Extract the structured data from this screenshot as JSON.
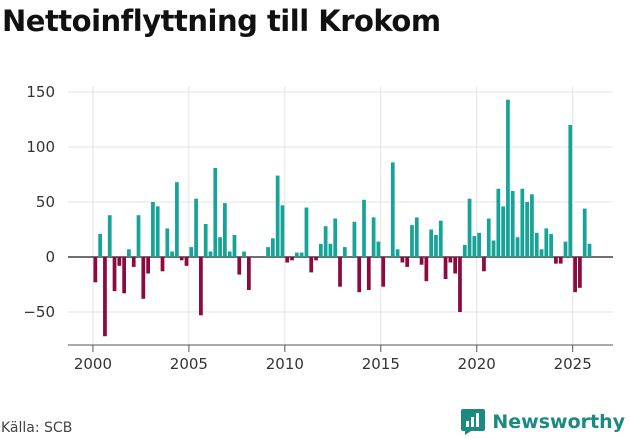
{
  "chart_data": {
    "type": "bar",
    "title": "Nettoinflyttning till Krokom",
    "xlabel": "",
    "ylabel": "",
    "xlim": [
      1998.7,
      2027.1
    ],
    "ylim": [
      -80,
      155
    ],
    "yticks": [
      -50,
      0,
      50,
      100,
      150
    ],
    "ytick_labels": [
      "−50",
      "0",
      "50",
      "100",
      "150"
    ],
    "xticks": [
      2000,
      2005,
      2010,
      2015,
      2020,
      2025
    ],
    "positive_color": "#17a398",
    "negative_color": "#8c0a3f",
    "grid": true,
    "x": [
      2000.125,
      2000.375,
      2000.625,
      2000.875,
      2001.125,
      2001.375,
      2001.625,
      2001.875,
      2002.125,
      2002.375,
      2002.625,
      2002.875,
      2003.125,
      2003.375,
      2003.625,
      2003.875,
      2004.125,
      2004.375,
      2004.625,
      2004.875,
      2005.125,
      2005.375,
      2005.625,
      2005.875,
      2006.125,
      2006.375,
      2006.625,
      2006.875,
      2007.125,
      2007.375,
      2007.625,
      2007.875,
      2008.125,
      2008.375,
      2008.625,
      2008.875,
      2009.125,
      2009.375,
      2009.625,
      2009.875,
      2010.125,
      2010.375,
      2010.625,
      2010.875,
      2011.125,
      2011.375,
      2011.625,
      2011.875,
      2012.125,
      2012.375,
      2012.625,
      2012.875,
      2013.125,
      2013.375,
      2013.625,
      2013.875,
      2014.125,
      2014.375,
      2014.625,
      2014.875,
      2015.125,
      2015.375,
      2015.625,
      2015.875,
      2016.125,
      2016.375,
      2016.625,
      2016.875,
      2017.125,
      2017.375,
      2017.625,
      2017.875,
      2018.125,
      2018.375,
      2018.625,
      2018.875,
      2019.125,
      2019.375,
      2019.625,
      2019.875,
      2020.125,
      2020.375,
      2020.625,
      2020.875,
      2021.125,
      2021.375,
      2021.625,
      2021.875,
      2022.125,
      2022.375,
      2022.625,
      2022.875,
      2023.125,
      2023.375,
      2023.625,
      2023.875,
      2024.125,
      2024.375,
      2024.625,
      2024.875,
      2025.125,
      2025.375,
      2025.625,
      2025.875
    ],
    "values": [
      -23,
      21,
      -72,
      38,
      -31,
      -8,
      -33,
      7,
      -9,
      38,
      -38,
      -15,
      50,
      46,
      -13,
      26,
      5,
      68,
      -3,
      -8,
      9,
      53,
      -53,
      30,
      5,
      81,
      18,
      49,
      5,
      20,
      -16,
      5,
      -30,
      0,
      0,
      0,
      9,
      17,
      74,
      47,
      -5,
      -3,
      4,
      4,
      45,
      -14,
      -3,
      12,
      28,
      12,
      35,
      -27,
      9,
      0,
      32,
      -32,
      52,
      -30,
      36,
      14,
      -27,
      0,
      86,
      7,
      -5,
      -9,
      29,
      36,
      -7,
      -22,
      25,
      20,
      33,
      -20,
      -5,
      -15,
      -50,
      11,
      53,
      19,
      22,
      -13,
      35,
      15,
      62,
      46,
      143,
      60,
      18,
      62,
      50,
      57,
      22,
      7,
      26,
      21,
      -6,
      -6,
      14,
      120,
      -32,
      -28,
      44,
      12
    ]
  },
  "source": "Källa: SCB",
  "brand": {
    "name": "Newsworthy",
    "logo_icon": "bar-chart-speech-bubble-icon",
    "color": "#1b8a80"
  }
}
